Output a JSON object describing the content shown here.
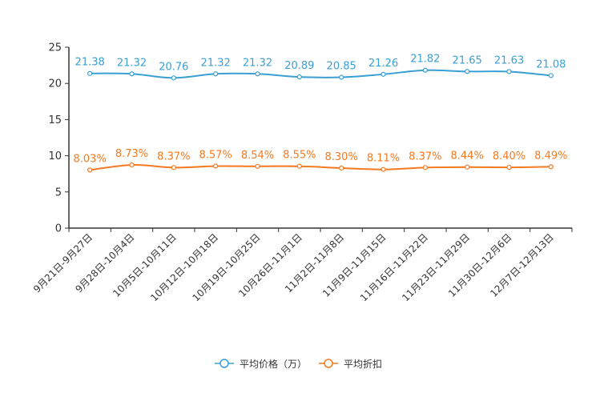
{
  "chart_data": {
    "type": "line",
    "title": "",
    "xlabel": "",
    "ylabel": "",
    "ylim": [
      0,
      25
    ],
    "yticks": [
      0,
      5,
      10,
      15,
      20,
      25
    ],
    "grid": false,
    "legend_position": "bottom",
    "categories": [
      "9月21日-9月27日",
      "9月28日-10月4日",
      "10月5日-10月11日",
      "10月12日-10月18日",
      "10月19日-10月25日",
      "10月26日-11月1日",
      "11月2日-11月8日",
      "11月9日-11月15日",
      "11月16日-11月22日",
      "11月23日-11月29日",
      "11月30日-12月6日",
      "12月7日-12月13日"
    ],
    "series": [
      {
        "name": "平均价格（万）",
        "color": "#3a9fd4",
        "values": [
          21.38,
          21.32,
          20.76,
          21.32,
          21.32,
          20.89,
          20.85,
          21.26,
          21.82,
          21.65,
          21.63,
          21.08
        ],
        "labels": [
          "21.38",
          "21.32",
          "20.76",
          "21.32",
          "21.32",
          "20.89",
          "20.85",
          "21.26",
          "21.82",
          "21.65",
          "21.63",
          "21.08"
        ]
      },
      {
        "name": "平均折扣",
        "color": "#f47920",
        "values": [
          8.03,
          8.73,
          8.37,
          8.57,
          8.54,
          8.55,
          8.3,
          8.11,
          8.37,
          8.44,
          8.4,
          8.49
        ],
        "labels": [
          "8.03%",
          "8.73%",
          "8.37%",
          "8.57%",
          "8.54%",
          "8.55%",
          "8.30%",
          "8.11%",
          "8.37%",
          "8.44%",
          "8.40%",
          "8.49%"
        ]
      }
    ]
  }
}
